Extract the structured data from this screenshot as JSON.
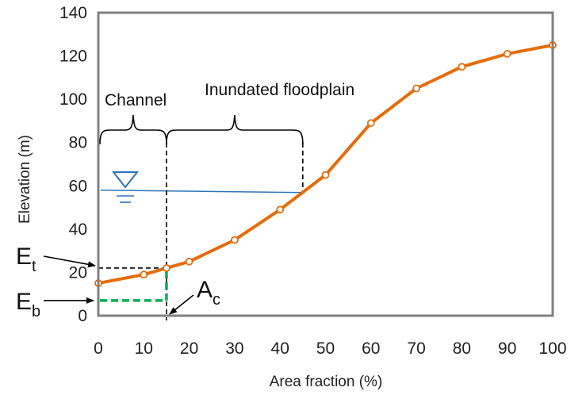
{
  "chart_data": {
    "type": "line",
    "title": "",
    "xlabel": "Area fraction (%)",
    "ylabel": "Elevation (m)",
    "xlim": [
      0,
      100
    ],
    "ylim": [
      0,
      140
    ],
    "x_ticks": [
      0,
      10,
      20,
      30,
      40,
      50,
      60,
      70,
      80,
      90,
      100
    ],
    "y_ticks": [
      0,
      20,
      40,
      60,
      80,
      100,
      120,
      140
    ],
    "grid": false,
    "series": [
      {
        "name": "",
        "x": [
          0,
          10,
          15,
          20,
          30,
          40,
          50,
          60,
          70,
          80,
          90,
          100
        ],
        "y": [
          15,
          19,
          22,
          25,
          35,
          49,
          65,
          89,
          105,
          115,
          121,
          125
        ]
      }
    ],
    "annotations": {
      "channel_label": "Channel",
      "floodplain_label": "Inundated floodplain",
      "water_level": 58,
      "floodplain_end_x": 45,
      "channel_end_x": 15,
      "Et_value": 22,
      "Eb_value": 7,
      "Et_main": "E",
      "Et_sub": "t",
      "Eb_main": "E",
      "Eb_sub": "b",
      "Ac_main": "A",
      "Ac_sub": "c"
    },
    "colors": {
      "series": "#E46C0A",
      "water": "#2E75B6",
      "channel_bed": "#00B050",
      "axis": "#808080",
      "dashed": "#000000"
    }
  }
}
